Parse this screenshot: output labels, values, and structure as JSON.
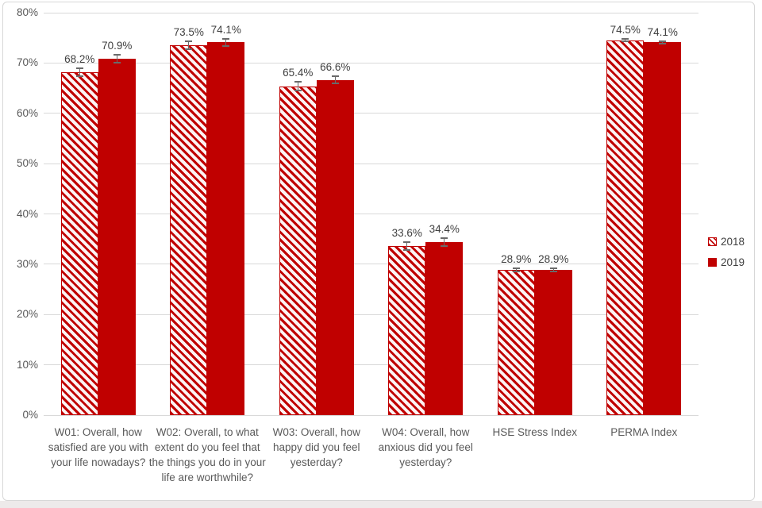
{
  "chart_data": {
    "type": "bar",
    "title": "",
    "categories": [
      "W01: Overall, how satisfied are you with your life nowadays?",
      "W02: Overall, to what extent do you feel that the things you do in your life are worthwhile?",
      "W03: Overall, how happy did you feel yesterday?",
      "W04:  Overall, how anxious did you feel yesterday?",
      "HSE Stress Index",
      "PERMA Index"
    ],
    "series": [
      {
        "name": "2018",
        "style": "hatched",
        "values": [
          68.2,
          73.5,
          65.4,
          33.6,
          28.9,
          74.5
        ],
        "labels": [
          "68.2%",
          "73.5%",
          "65.4%",
          "33.6%",
          "28.9%",
          "74.5%"
        ],
        "errors": [
          0.8,
          0.8,
          0.8,
          0.8,
          0.3,
          0.25
        ]
      },
      {
        "name": "2019",
        "style": "solid",
        "values": [
          70.9,
          74.1,
          66.6,
          34.4,
          28.9,
          74.1
        ],
        "labels": [
          "70.9%",
          "74.1%",
          "66.6%",
          "34.4%",
          "28.9%",
          "74.1%"
        ],
        "errors": [
          0.8,
          0.7,
          0.7,
          0.8,
          0.3,
          0.25
        ]
      }
    ],
    "ylim": [
      0,
      80
    ],
    "ytick_step": 10,
    "ytick_labels": [
      "0%",
      "10%",
      "20%",
      "30%",
      "40%",
      "50%",
      "60%",
      "70%",
      "80%"
    ],
    "grid": true,
    "error_bars": true,
    "legend_position": "right",
    "colors": {
      "bar_red": "#c00000",
      "hatch_background": "#fcf4f4",
      "gridline": "#d9d9d9",
      "axis_text": "#595959",
      "value_label_text": "#404040",
      "error_bar": "#6a6a6a"
    }
  },
  "legend": {
    "items": [
      {
        "label": "2018",
        "style": "hatched"
      },
      {
        "label": "2019",
        "style": "solid"
      }
    ]
  }
}
